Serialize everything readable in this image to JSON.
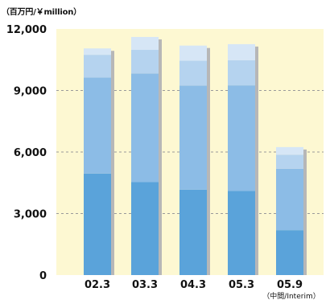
{
  "chart_data": {
    "type": "bar",
    "stacked": true,
    "unit_label": "（百万円/￥million）",
    "categories": [
      "02.3",
      "03.3",
      "04.3",
      "05.3",
      "05.9"
    ],
    "category_sublabels": [
      "",
      "",
      "",
      "",
      "（中間/Interim）"
    ],
    "series": [
      {
        "values": [
          4950,
          4530,
          4160,
          4100,
          2190
        ],
        "color": "#5aa3da"
      },
      {
        "values": [
          4680,
          5300,
          5080,
          5150,
          2990
        ],
        "color": "#8cbce6"
      },
      {
        "values": [
          1110,
          1150,
          1210,
          1220,
          690
        ],
        "color": "#b5d3ef"
      },
      {
        "values": [
          310,
          630,
          740,
          790,
          370
        ],
        "color": "#d6e6f6"
      }
    ],
    "ylim": [
      0,
      12000
    ],
    "yticks": [
      "0",
      "3,000",
      "6,000",
      "9,000",
      "12,000"
    ],
    "ytick_values": [
      0,
      3000,
      6000,
      9000,
      12000
    ],
    "grid": true,
    "grid_style": "dashed",
    "background_color": "#fdf8d2",
    "xlabel": "",
    "ylabel": ""
  }
}
